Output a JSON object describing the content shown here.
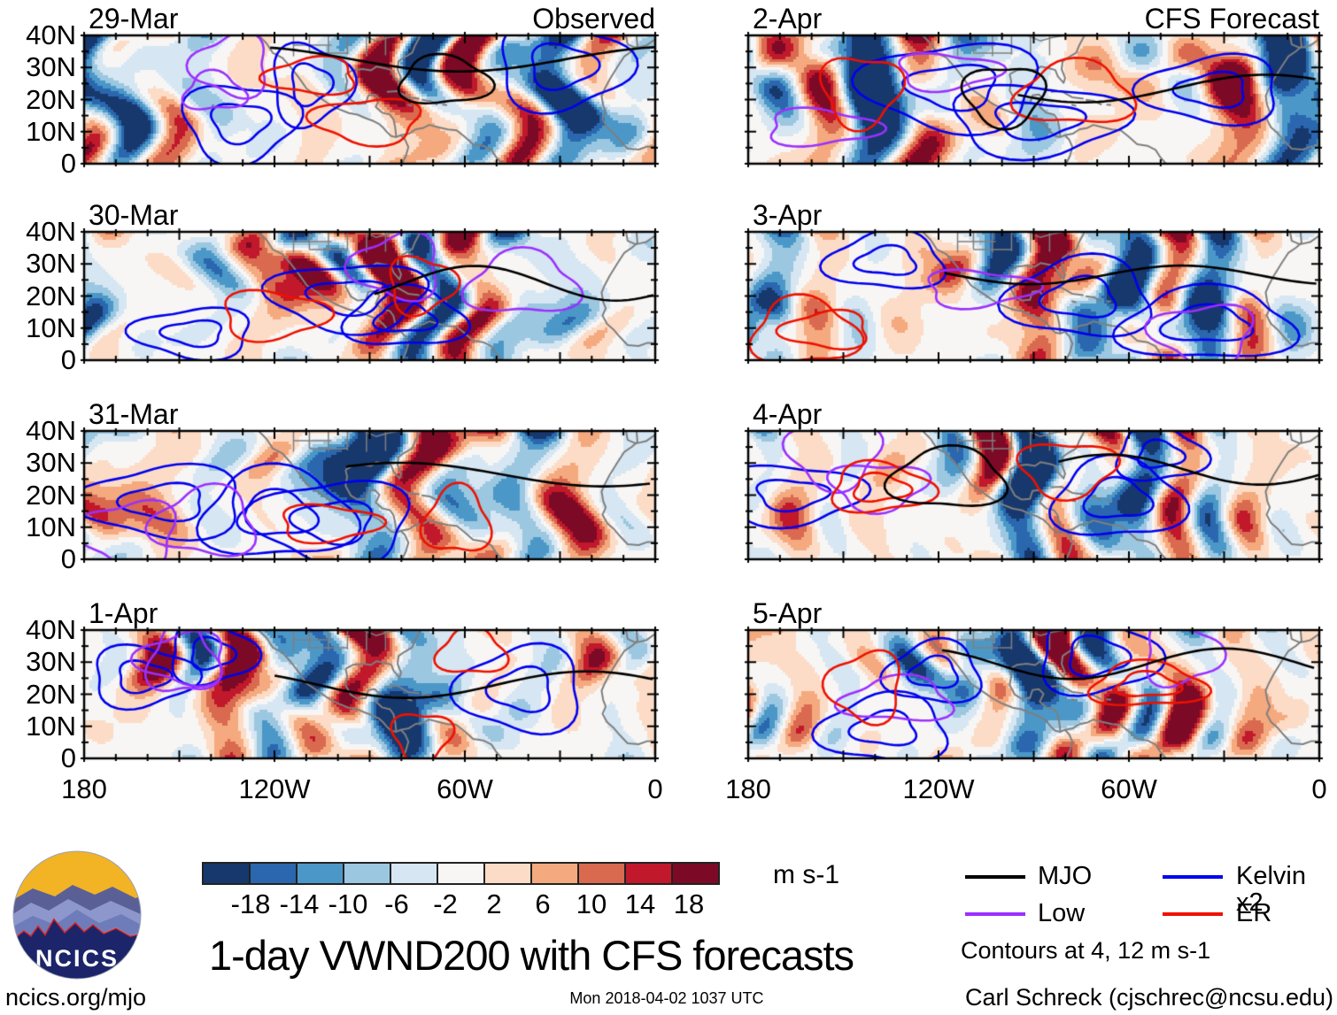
{
  "figure": {
    "title": "1-day VWND200 with CFS forecasts",
    "footer": {
      "left": "ncics.org/mjo",
      "center": "Mon 2018-04-02 1037 UTC",
      "right": "Carl Schreck (cjschrec@ncsu.edu)"
    }
  },
  "logo": {
    "text": "NCICS",
    "colors": {
      "sky": "#F2B324",
      "navy": "#1C2569",
      "red": "#D42020",
      "ridge_far": "#5A6096",
      "ridge_light": "#8D97CC",
      "ridge_mid": "#6F7CBA",
      "ridge_front": "#A9B1D9",
      "text": "#FFFFFF"
    }
  },
  "columns": [
    {
      "heading": "Observed",
      "dates": [
        "29-Mar",
        "30-Mar",
        "31-Mar",
        "1-Apr"
      ]
    },
    {
      "heading": "CFS Forecast",
      "dates": [
        "2-Apr",
        "3-Apr",
        "4-Apr",
        "5-Apr"
      ]
    }
  ],
  "axes": {
    "y_ticks": [
      "40N",
      "30N",
      "20N",
      "10N",
      "0"
    ],
    "x_ticks": [
      "180",
      "120W",
      "60W",
      "0"
    ]
  },
  "colorbar": {
    "boundary_labels": [
      "-18",
      "-14",
      "-10",
      "-6",
      "-2",
      "2",
      "6",
      "10",
      "14",
      "18"
    ],
    "unit": "m s-1"
  },
  "legend": {
    "entries": [
      {
        "label": "MJO",
        "color": "#000000"
      },
      {
        "label": "Kelvin x2",
        "color": "#0000EE"
      },
      {
        "label": "Low",
        "color": "#9B30FF"
      },
      {
        "label": "ER",
        "color": "#EE1100"
      }
    ],
    "note": "Contours at 4, 12 m s-1"
  },
  "chart_data": {
    "type": "heatmap",
    "title": "1-day VWND200 with CFS forecasts",
    "variable_unit": "m s-1",
    "panels": [
      {
        "date": "29-Mar",
        "column": "Observed"
      },
      {
        "date": "30-Mar",
        "column": "Observed"
      },
      {
        "date": "31-Mar",
        "column": "Observed"
      },
      {
        "date": "1-Apr",
        "column": "Observed"
      },
      {
        "date": "2-Apr",
        "column": "CFS Forecast"
      },
      {
        "date": "3-Apr",
        "column": "CFS Forecast"
      },
      {
        "date": "4-Apr",
        "column": "CFS Forecast"
      },
      {
        "date": "5-Apr",
        "column": "CFS Forecast"
      }
    ],
    "x_axis": {
      "tick_labels": [
        "180",
        "120W",
        "60W",
        "0"
      ],
      "range_deg_west": [
        180,
        0
      ]
    },
    "y_axis": {
      "tick_labels": [
        "40N",
        "30N",
        "20N",
        "10N",
        "0"
      ],
      "range_deg_north": [
        0,
        40
      ]
    },
    "color_levels": [
      -18,
      -14,
      -10,
      -6,
      -2,
      2,
      6,
      10,
      14,
      18
    ],
    "palette": [
      "#17386D",
      "#2A67AE",
      "#4B98C8",
      "#9CC7E0",
      "#D6E6F2",
      "#F7F6F4",
      "#FCDCC6",
      "#F5A97E",
      "#D96A50",
      "#C2182B",
      "#7C0A26"
    ],
    "coastline_color": "#7F7F7F",
    "contour_overlays": [
      {
        "name": "MJO",
        "color": "#000000"
      },
      {
        "name": "Kelvin x2",
        "color": "#0000EE"
      },
      {
        "name": "Low",
        "color": "#9B30FF"
      },
      {
        "name": "ER",
        "color": "#EE1100"
      }
    ],
    "contour_levels": [
      4,
      12
    ],
    "legend_position": "bottom-right",
    "grid": false
  }
}
